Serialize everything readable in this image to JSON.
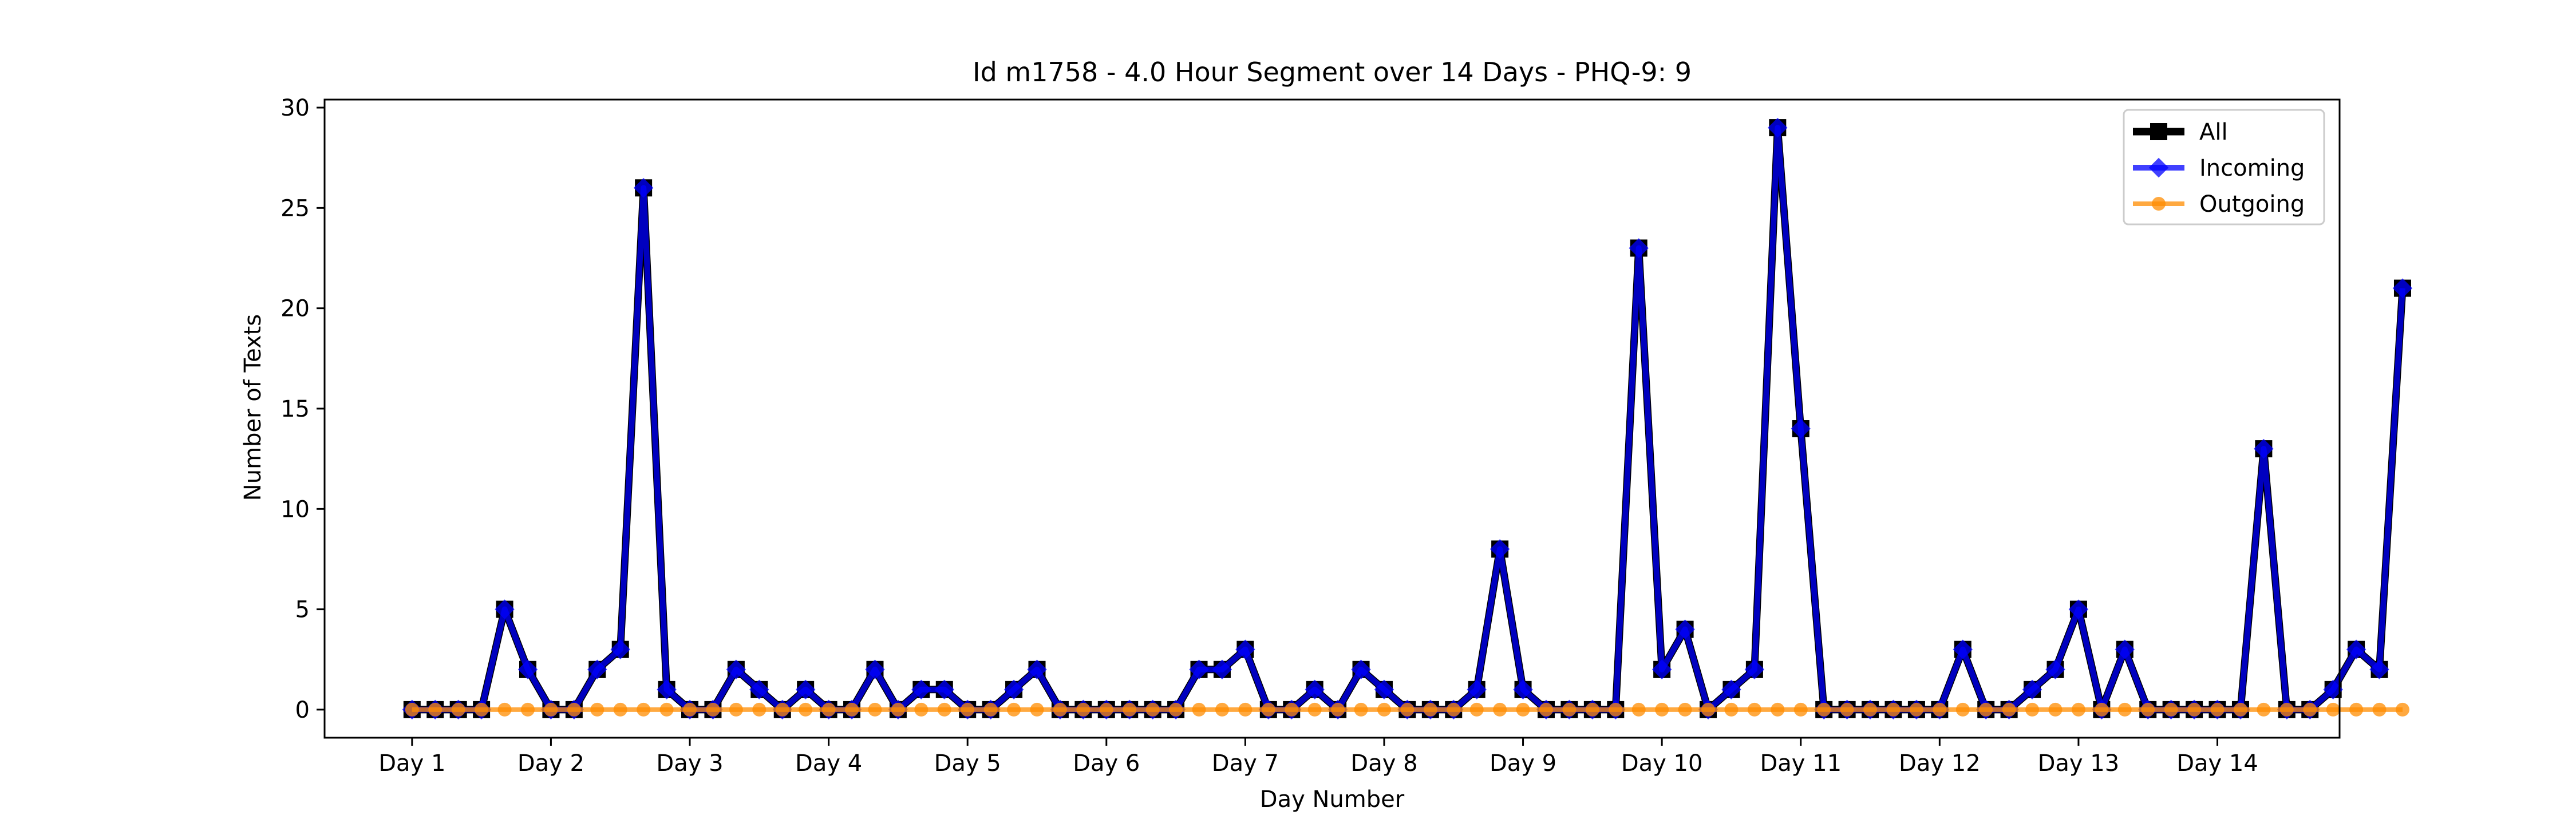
{
  "chart_data": {
    "type": "line",
    "title": "Id m1758 - 4.0 Hour Segment over 14 Days - PHQ-9: 9",
    "xlabel": "Day Number",
    "ylabel": "Number of Texts",
    "ylim": [
      -1.4,
      30.4
    ],
    "xlim": [
      -0.63,
      13.88
    ],
    "yticks": [
      0,
      5,
      10,
      15,
      20,
      25,
      30
    ],
    "xtick_labels": [
      "Day 1",
      "Day 2",
      "Day 3",
      "Day 4",
      "Day 5",
      "Day 6",
      "Day 7",
      "Day 8",
      "Day 9",
      "Day 10",
      "Day 11",
      "Day 12",
      "Day 13",
      "Day 14"
    ],
    "x_step_per_day": 6,
    "grid": false,
    "legend_position": "top-right",
    "series": [
      {
        "name": "All",
        "color": "#000000",
        "marker": "square",
        "values": [
          0,
          0,
          0,
          0,
          5,
          2,
          0,
          0,
          2,
          3,
          26,
          1,
          0,
          0,
          2,
          1,
          0,
          1,
          0,
          0,
          2,
          0,
          1,
          1,
          0,
          0,
          1,
          2,
          0,
          0,
          0,
          0,
          0,
          0,
          2,
          2,
          3,
          0,
          0,
          1,
          0,
          2,
          1,
          0,
          0,
          0,
          1,
          8,
          1,
          0,
          0,
          0,
          0,
          23,
          2,
          4,
          0,
          1,
          2,
          29,
          14,
          0,
          0,
          0,
          0,
          0,
          0,
          3,
          0,
          0,
          1,
          2,
          5,
          0,
          3,
          0,
          0,
          0,
          0,
          0,
          13,
          0,
          0,
          1,
          3,
          2,
          21
        ]
      },
      {
        "name": "Incoming",
        "color": "#0000ff",
        "marker": "diamond",
        "values": [
          0,
          0,
          0,
          0,
          5,
          2,
          0,
          0,
          2,
          3,
          26,
          1,
          0,
          0,
          2,
          1,
          0,
          1,
          0,
          0,
          2,
          0,
          1,
          1,
          0,
          0,
          1,
          2,
          0,
          0,
          0,
          0,
          0,
          0,
          2,
          2,
          3,
          0,
          0,
          1,
          0,
          2,
          1,
          0,
          0,
          0,
          1,
          8,
          1,
          0,
          0,
          0,
          0,
          23,
          2,
          4,
          0,
          1,
          2,
          29,
          14,
          0,
          0,
          0,
          0,
          0,
          0,
          3,
          0,
          0,
          1,
          2,
          5,
          0,
          3,
          0,
          0,
          0,
          0,
          0,
          13,
          0,
          0,
          1,
          3,
          2,
          21
        ]
      },
      {
        "name": "Outgoing",
        "color": "#ff8c00",
        "marker": "circle",
        "values": [
          0,
          0,
          0,
          0,
          0,
          0,
          0,
          0,
          0,
          0,
          0,
          0,
          0,
          0,
          0,
          0,
          0,
          0,
          0,
          0,
          0,
          0,
          0,
          0,
          0,
          0,
          0,
          0,
          0,
          0,
          0,
          0,
          0,
          0,
          0,
          0,
          0,
          0,
          0,
          0,
          0,
          0,
          0,
          0,
          0,
          0,
          0,
          0,
          0,
          0,
          0,
          0,
          0,
          0,
          0,
          0,
          0,
          0,
          0,
          0,
          0,
          0,
          0,
          0,
          0,
          0,
          0,
          0,
          0,
          0,
          0,
          0,
          0,
          0,
          0,
          0,
          0,
          0,
          0,
          0,
          0,
          0,
          0,
          0,
          0,
          0,
          0
        ]
      }
    ]
  }
}
